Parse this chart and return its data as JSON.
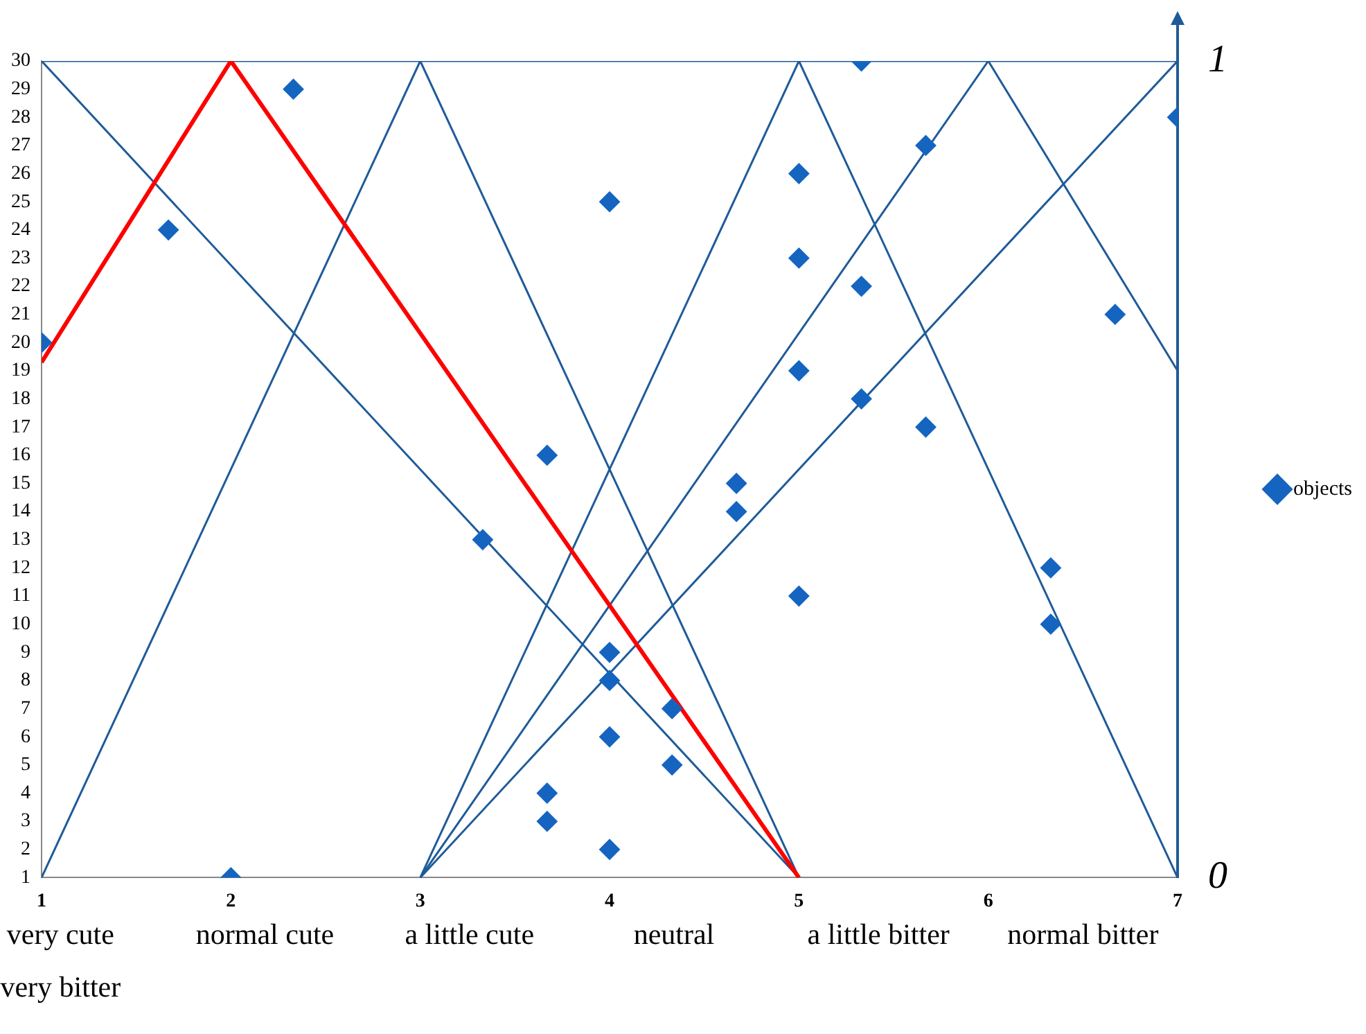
{
  "chart_data": {
    "type": "scatter",
    "xlim": [
      1,
      7
    ],
    "xticks": [
      1,
      2,
      3,
      4,
      5,
      6,
      7
    ],
    "ylim": [
      1,
      30
    ],
    "yticks": [
      1,
      2,
      3,
      4,
      5,
      6,
      7,
      8,
      9,
      10,
      11,
      12,
      13,
      14,
      15,
      16,
      17,
      18,
      19,
      20,
      21,
      22,
      23,
      24,
      25,
      26,
      27,
      28,
      29,
      30
    ],
    "y2lim": [
      0,
      1
    ],
    "y2ticks": [
      0,
      1
    ],
    "grid": false,
    "legend": "right",
    "marker": "diamond",
    "annotations": [
      "very cute",
      "normal cute",
      "a little cute",
      "neutral",
      "a little bitter",
      "normal bitter",
      "very bitter"
    ],
    "series": [
      {
        "name": "objects",
        "color": "#1565c0",
        "x": [
          1,
          1.67,
          2,
          2.33,
          3.33,
          3.67,
          3.67,
          3.67,
          4,
          4,
          4,
          4,
          4,
          4.33,
          4.33,
          4.67,
          4.67,
          5,
          5,
          5,
          5,
          5.33,
          5.33,
          5.33,
          5.67,
          5.67,
          6.33,
          6.33,
          6.67,
          7
        ],
        "values": [
          20,
          24,
          1,
          29,
          13,
          16,
          4,
          3,
          25,
          9,
          8,
          6,
          2,
          7,
          5,
          15,
          14,
          26,
          23,
          19,
          11,
          30,
          22,
          18,
          27,
          17,
          12,
          10,
          21,
          28
        ]
      },
      {
        "type": "line",
        "marker": "none",
        "color": "#ff0000",
        "x": [
          1,
          2,
          5
        ],
        "values": [
          19.3,
          30,
          1
        ]
      },
      {
        "type": "line",
        "marker": "none",
        "color": "#1f5b99",
        "x": [
          1,
          7
        ],
        "values": [
          30,
          30
        ]
      },
      {
        "type": "line",
        "marker": "none",
        "color": "#1f5b99",
        "x": [
          1,
          5
        ],
        "values": [
          30,
          1
        ]
      },
      {
        "type": "line",
        "marker": "none",
        "color": "#1f5b99",
        "x": [
          1,
          3,
          5
        ],
        "values": [
          1,
          30,
          1
        ]
      },
      {
        "type": "line",
        "marker": "none",
        "color": "#1f5b99",
        "x": [
          3,
          5,
          7
        ],
        "values": [
          1,
          30,
          1
        ]
      },
      {
        "type": "line",
        "marker": "none",
        "color": "#1f5b99",
        "x": [
          3,
          6,
          7
        ],
        "values": [
          1,
          30,
          19
        ]
      },
      {
        "type": "line",
        "marker": "none",
        "color": "#1f5b99",
        "x": [
          3,
          7
        ],
        "values": [
          1,
          30
        ]
      }
    ]
  }
}
